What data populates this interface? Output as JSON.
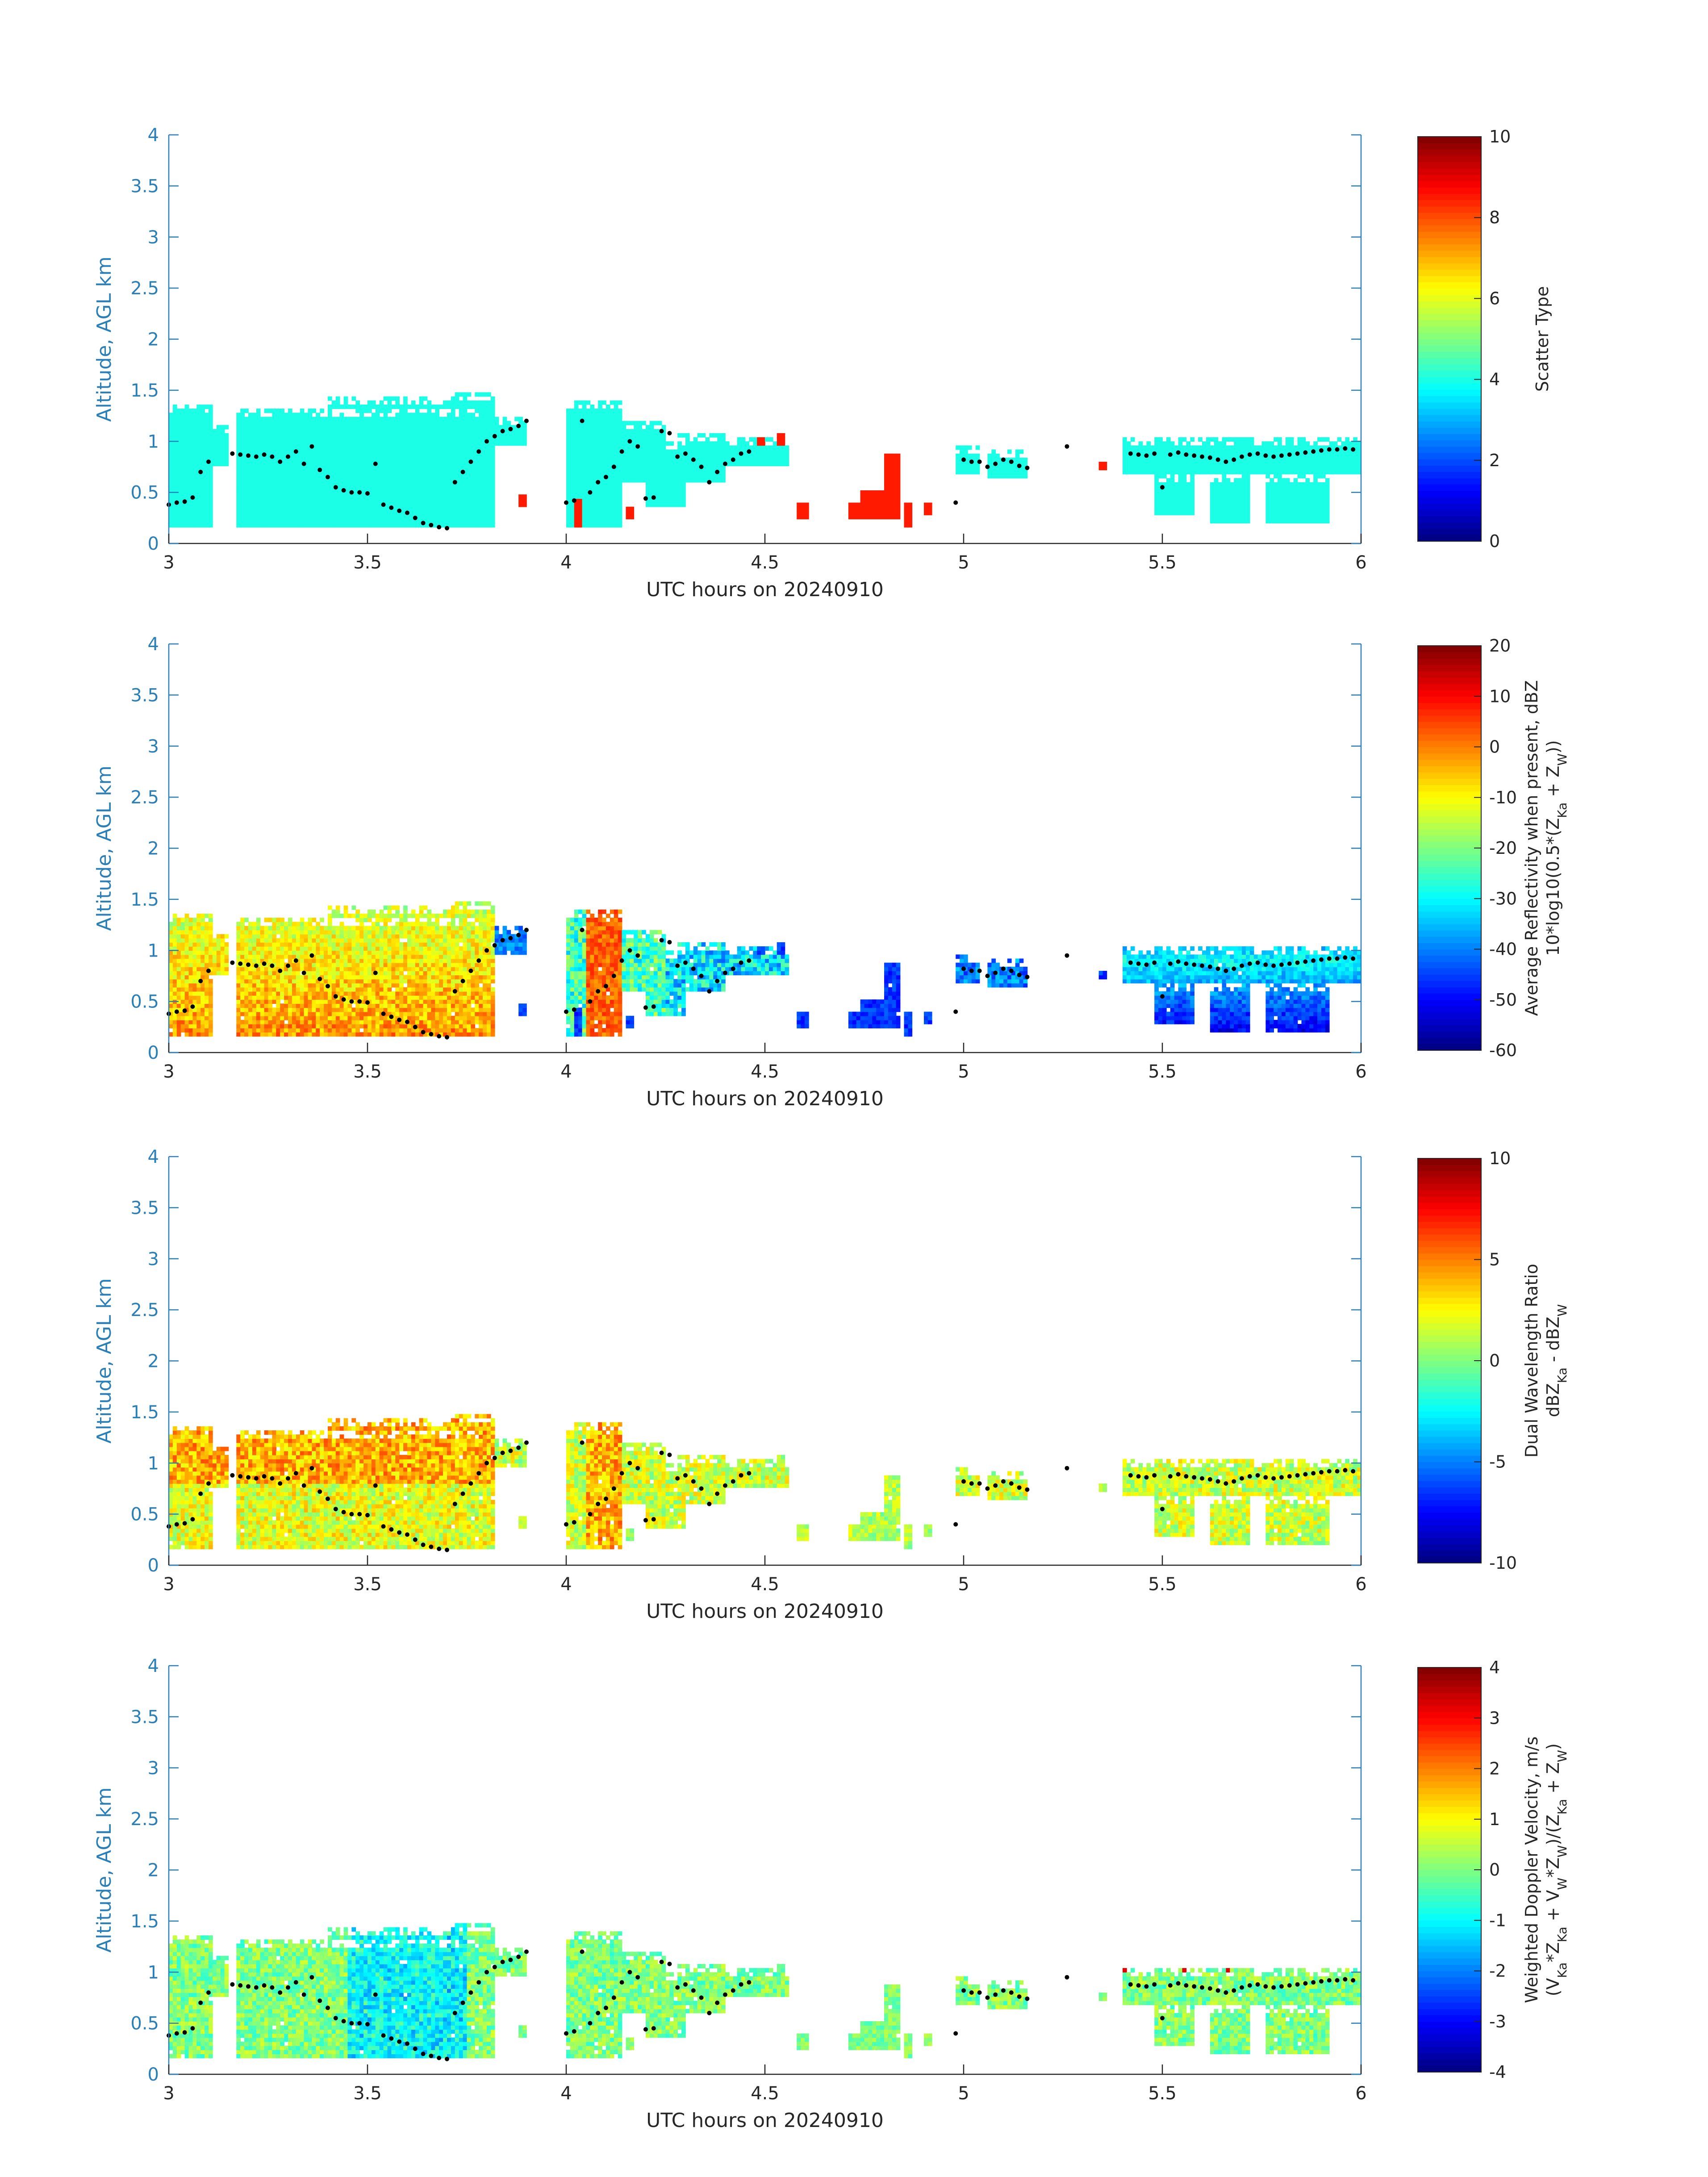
{
  "chart_data": [
    {
      "type": "heatmap",
      "xlabel": "UTC hours on 20240910",
      "ylabel": "Altitude, AGL km",
      "xlim": [
        3,
        6
      ],
      "ylim": [
        0,
        4
      ],
      "x_ticks": [
        3,
        3.5,
        4,
        4.5,
        5,
        5.5,
        6
      ],
      "x_tick_labels": [
        "3",
        "3.5",
        "4",
        "4.5",
        "5",
        "5.5",
        "6"
      ],
      "y_ticks": [
        0,
        0.5,
        1,
        1.5,
        2,
        2.5,
        3,
        3.5,
        4
      ],
      "y_tick_labels": [
        "0",
        "0.5",
        "1",
        "1.5",
        "2",
        "2.5",
        "3",
        "3.5",
        "4"
      ],
      "colorbar": {
        "label_lines": [
          "Scatter Type"
        ],
        "range": [
          0,
          10
        ],
        "ticks": [
          0,
          2,
          4,
          6,
          8,
          10
        ],
        "tick_labels": [
          "0",
          "2",
          "4",
          "6",
          "8",
          "10"
        ]
      },
      "colormap": "jet",
      "mode": "scatter_type",
      "description_values": {
        "dominant_value": 4,
        "precip_value": 8.5
      }
    },
    {
      "type": "heatmap",
      "xlabel": "UTC hours on 20240910",
      "ylabel": "Altitude, AGL km",
      "xlim": [
        3,
        6
      ],
      "ylim": [
        0,
        4
      ],
      "x_ticks": [
        3,
        3.5,
        4,
        4.5,
        5,
        5.5,
        6
      ],
      "x_tick_labels": [
        "3",
        "3.5",
        "4",
        "4.5",
        "5",
        "5.5",
        "6"
      ],
      "y_ticks": [
        0,
        0.5,
        1,
        1.5,
        2,
        2.5,
        3,
        3.5,
        4
      ],
      "y_tick_labels": [
        "0",
        "0.5",
        "1",
        "1.5",
        "2",
        "2.5",
        "3",
        "3.5",
        "4"
      ],
      "colorbar": {
        "label_lines": [
          "Average Reflectivity when present, dBZ",
          "10*log10(0.5*(Z_Ka + Z_W))"
        ],
        "range": [
          -60,
          20
        ],
        "ticks": [
          -60,
          -50,
          -40,
          -30,
          -20,
          -10,
          0,
          10,
          20
        ],
        "tick_labels": [
          "-60",
          "-50",
          "-40",
          "-30",
          "-20",
          "-10",
          "0",
          "10",
          "20"
        ]
      },
      "colormap": "jet",
      "mode": "reflectivity"
    },
    {
      "type": "heatmap",
      "xlabel": "UTC hours on 20240910",
      "ylabel": "Altitude, AGL km",
      "xlim": [
        3,
        6
      ],
      "ylim": [
        0,
        4
      ],
      "x_ticks": [
        3,
        3.5,
        4,
        4.5,
        5,
        5.5,
        6
      ],
      "x_tick_labels": [
        "3",
        "3.5",
        "4",
        "4.5",
        "5",
        "5.5",
        "6"
      ],
      "y_ticks": [
        0,
        0.5,
        1,
        1.5,
        2,
        2.5,
        3,
        3.5,
        4
      ],
      "y_tick_labels": [
        "0",
        "0.5",
        "1",
        "1.5",
        "2",
        "2.5",
        "3",
        "3.5",
        "4"
      ],
      "colorbar": {
        "label_lines": [
          "Dual Wavelength Ratio",
          "dBZ_Ka - dBZ_W"
        ],
        "range": [
          -10,
          10
        ],
        "ticks": [
          -10,
          -5,
          0,
          5,
          10
        ],
        "tick_labels": [
          "-10",
          "-5",
          "0",
          "5",
          "10"
        ]
      },
      "colormap": "jet",
      "mode": "dwr"
    },
    {
      "type": "heatmap",
      "xlabel": "UTC hours on 20240910",
      "ylabel": "Altitude, AGL km",
      "xlim": [
        3,
        6
      ],
      "ylim": [
        0,
        4
      ],
      "x_ticks": [
        3,
        3.5,
        4,
        4.5,
        5,
        5.5,
        6
      ],
      "x_tick_labels": [
        "3",
        "3.5",
        "4",
        "4.5",
        "5",
        "5.5",
        "6"
      ],
      "y_ticks": [
        0,
        0.5,
        1,
        1.5,
        2,
        2.5,
        3,
        3.5,
        4
      ],
      "y_tick_labels": [
        "0",
        "0.5",
        "1",
        "1.5",
        "2",
        "2.5",
        "3",
        "3.5",
        "4"
      ],
      "colorbar": {
        "label_lines": [
          "Weighted Doppler Velocity, m/s",
          "(V_Ka*Z_Ka + V_W*Z_W)/(Z_Ka + Z_W)"
        ],
        "range": [
          -4,
          4
        ],
        "ticks": [
          -4,
          -3,
          -2,
          -1,
          0,
          1,
          2,
          3,
          4
        ],
        "tick_labels": [
          "-4",
          "-3",
          "-2",
          "-1",
          "0",
          "1",
          "2",
          "3",
          "4"
        ]
      },
      "colormap": "jet",
      "mode": "velocity"
    }
  ],
  "cloud_regions": [
    {
      "t0": 3.0,
      "t1": 3.11,
      "bottom": 0.18,
      "top": 1.35
    },
    {
      "t0": 3.11,
      "t1": 3.15,
      "bottom": 0.75,
      "top": 1.15
    },
    {
      "t0": 3.17,
      "t1": 3.8,
      "bottom": 0.18,
      "top": 1.32
    },
    {
      "t0": 3.4,
      "t1": 3.72,
      "bottom": 0.18,
      "top": 1.45
    },
    {
      "t0": 3.72,
      "t1": 3.82,
      "bottom": 0.18,
      "top": 1.5
    },
    {
      "t0": 3.82,
      "t1": 3.9,
      "bottom": 0.95,
      "top": 1.25
    },
    {
      "t0": 4.0,
      "t1": 4.14,
      "bottom": 0.18,
      "top": 1.42
    },
    {
      "t0": 4.14,
      "t1": 4.25,
      "bottom": 0.6,
      "top": 1.2
    },
    {
      "t0": 4.2,
      "t1": 4.3,
      "bottom": 0.35,
      "top": 1.0
    },
    {
      "t0": 4.28,
      "t1": 4.4,
      "bottom": 0.6,
      "top": 1.1
    },
    {
      "t0": 4.4,
      "t1": 4.56,
      "bottom": 0.75,
      "top": 1.05
    },
    {
      "t0": 4.98,
      "t1": 5.04,
      "bottom": 0.68,
      "top": 0.95
    },
    {
      "t0": 5.06,
      "t1": 5.16,
      "bottom": 0.65,
      "top": 0.92
    },
    {
      "t0": 5.4,
      "t1": 6.0,
      "bottom": 0.68,
      "top": 1.05
    },
    {
      "t0": 5.48,
      "t1": 5.58,
      "bottom": 0.3,
      "top": 0.7
    },
    {
      "t0": 5.62,
      "t1": 5.72,
      "bottom": 0.2,
      "top": 0.7
    },
    {
      "t0": 5.76,
      "t1": 5.92,
      "bottom": 0.2,
      "top": 0.7
    }
  ],
  "precip_regions": [
    {
      "t0": 3.88,
      "t1": 3.9,
      "bottom": 0.35,
      "top": 0.48
    },
    {
      "t0": 4.02,
      "t1": 4.04,
      "bottom": 0.18,
      "top": 0.45
    },
    {
      "t0": 4.15,
      "t1": 4.17,
      "bottom": 0.25,
      "top": 0.35
    },
    {
      "t0": 4.58,
      "t1": 4.61,
      "bottom": 0.25,
      "top": 0.42
    },
    {
      "t0": 4.71,
      "t1": 4.74,
      "bottom": 0.25,
      "top": 0.42
    },
    {
      "t0": 4.74,
      "t1": 4.83,
      "bottom": 0.25,
      "top": 0.5
    },
    {
      "t0": 4.8,
      "t1": 4.84,
      "bottom": 0.25,
      "top": 0.88
    },
    {
      "t0": 4.85,
      "t1": 4.87,
      "bottom": 0.18,
      "top": 0.4
    },
    {
      "t0": 4.9,
      "t1": 4.92,
      "bottom": 0.3,
      "top": 0.42
    },
    {
      "t0": 5.34,
      "t1": 5.36,
      "bottom": 0.72,
      "top": 0.82
    },
    {
      "t0": 4.48,
      "t1": 4.5,
      "bottom": 0.95,
      "top": 1.05
    },
    {
      "t0": 4.53,
      "t1": 4.55,
      "bottom": 0.95,
      "top": 1.07
    }
  ],
  "dot_track": [
    [
      3.0,
      0.38
    ],
    [
      3.02,
      0.4
    ],
    [
      3.04,
      0.41
    ],
    [
      3.06,
      0.45
    ],
    [
      3.08,
      0.7
    ],
    [
      3.1,
      0.8
    ],
    [
      3.16,
      0.88
    ],
    [
      3.18,
      0.87
    ],
    [
      3.2,
      0.86
    ],
    [
      3.22,
      0.85
    ],
    [
      3.24,
      0.87
    ],
    [
      3.26,
      0.85
    ],
    [
      3.28,
      0.8
    ],
    [
      3.3,
      0.85
    ],
    [
      3.32,
      0.9
    ],
    [
      3.34,
      0.78
    ],
    [
      3.36,
      0.95
    ],
    [
      3.38,
      0.72
    ],
    [
      3.4,
      0.65
    ],
    [
      3.42,
      0.55
    ],
    [
      3.44,
      0.52
    ],
    [
      3.46,
      0.5
    ],
    [
      3.48,
      0.5
    ],
    [
      3.5,
      0.49
    ],
    [
      3.52,
      0.78
    ],
    [
      3.54,
      0.38
    ],
    [
      3.56,
      0.35
    ],
    [
      3.58,
      0.32
    ],
    [
      3.6,
      0.3
    ],
    [
      3.62,
      0.25
    ],
    [
      3.64,
      0.2
    ],
    [
      3.66,
      0.18
    ],
    [
      3.68,
      0.16
    ],
    [
      3.7,
      0.15
    ],
    [
      3.72,
      0.6
    ],
    [
      3.74,
      0.7
    ],
    [
      3.76,
      0.8
    ],
    [
      3.78,
      0.9
    ],
    [
      3.8,
      1.0
    ],
    [
      3.82,
      1.05
    ],
    [
      3.84,
      1.1
    ],
    [
      3.86,
      1.12
    ],
    [
      3.88,
      1.15
    ],
    [
      3.9,
      1.2
    ],
    [
      4.0,
      0.4
    ],
    [
      4.02,
      0.42
    ],
    [
      4.04,
      1.2
    ],
    [
      4.06,
      0.5
    ],
    [
      4.08,
      0.6
    ],
    [
      4.1,
      0.65
    ],
    [
      4.12,
      0.75
    ],
    [
      4.14,
      0.9
    ],
    [
      4.16,
      1.0
    ],
    [
      4.18,
      0.95
    ],
    [
      4.2,
      0.44
    ],
    [
      4.22,
      0.45
    ],
    [
      4.24,
      1.1
    ],
    [
      4.26,
      1.08
    ],
    [
      4.28,
      0.85
    ],
    [
      4.3,
      0.88
    ],
    [
      4.32,
      0.82
    ],
    [
      4.34,
      0.75
    ],
    [
      4.36,
      0.6
    ],
    [
      4.38,
      0.7
    ],
    [
      4.4,
      0.78
    ],
    [
      4.42,
      0.82
    ],
    [
      4.44,
      0.88
    ],
    [
      4.46,
      0.9
    ],
    [
      4.98,
      0.4
    ],
    [
      5.0,
      0.82
    ],
    [
      5.02,
      0.8
    ],
    [
      5.04,
      0.8
    ],
    [
      5.06,
      0.75
    ],
    [
      5.08,
      0.78
    ],
    [
      5.1,
      0.82
    ],
    [
      5.12,
      0.8
    ],
    [
      5.14,
      0.76
    ],
    [
      5.16,
      0.74
    ],
    [
      5.26,
      0.95
    ],
    [
      5.42,
      0.88
    ],
    [
      5.44,
      0.87
    ],
    [
      5.46,
      0.86
    ],
    [
      5.48,
      0.88
    ],
    [
      5.5,
      0.55
    ],
    [
      5.52,
      0.87
    ],
    [
      5.54,
      0.89
    ],
    [
      5.56,
      0.87
    ],
    [
      5.58,
      0.86
    ],
    [
      5.6,
      0.85
    ],
    [
      5.62,
      0.84
    ],
    [
      5.64,
      0.82
    ],
    [
      5.66,
      0.8
    ],
    [
      5.68,
      0.82
    ],
    [
      5.7,
      0.85
    ],
    [
      5.72,
      0.87
    ],
    [
      5.74,
      0.88
    ],
    [
      5.76,
      0.86
    ],
    [
      5.78,
      0.85
    ],
    [
      5.8,
      0.86
    ],
    [
      5.82,
      0.87
    ],
    [
      5.84,
      0.88
    ],
    [
      5.86,
      0.89
    ],
    [
      5.88,
      0.9
    ],
    [
      5.9,
      0.91
    ],
    [
      5.92,
      0.92
    ],
    [
      5.94,
      0.92
    ],
    [
      5.96,
      0.93
    ],
    [
      5.98,
      0.92
    ]
  ]
}
